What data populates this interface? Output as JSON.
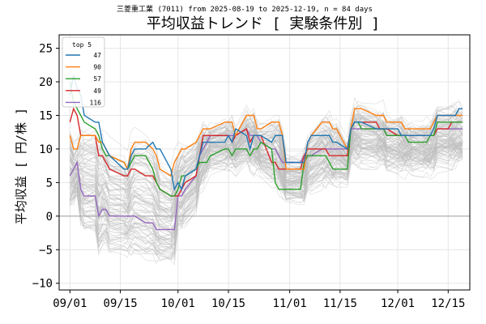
{
  "chart_data": {
    "type": "line",
    "subtitle": "三菱重工業 (7011) from 2025-08-19 to 2025-12-19, n = 84 days",
    "title": "平均収益トレンド [ 実験条件別 ]",
    "ylabel": "平均収益 [ 円/株 ]",
    "xlabel": "",
    "ylim": [
      -11,
      27
    ],
    "yticks": [
      -10,
      -5,
      0,
      5,
      10,
      15,
      20,
      25
    ],
    "xlim": [
      "2025-08-29",
      "2025-12-21"
    ],
    "xticks": [
      "09/01",
      "09/15",
      "10/01",
      "10/15",
      "11/01",
      "11/15",
      "12/01",
      "12/15"
    ],
    "xtick_dates": [
      "2025-09-01",
      "2025-09-15",
      "2025-10-01",
      "2025-10-15",
      "2025-11-01",
      "2025-11-15",
      "2025-12-01",
      "2025-12-15"
    ],
    "grid": true,
    "legend": {
      "title": "top 5",
      "placement": "top-left"
    },
    "background_series_count": 120,
    "dates": [
      "2025-09-01",
      "2025-09-02",
      "2025-09-03",
      "2025-09-04",
      "2025-09-05",
      "2025-09-08",
      "2025-09-09",
      "2025-09-10",
      "2025-09-11",
      "2025-09-12",
      "2025-09-16",
      "2025-09-17",
      "2025-09-18",
      "2025-09-19",
      "2025-09-22",
      "2025-09-24",
      "2025-09-25",
      "2025-09-26",
      "2025-09-29",
      "2025-09-30",
      "2025-10-01",
      "2025-10-02",
      "2025-10-03",
      "2025-10-06",
      "2025-10-07",
      "2025-10-08",
      "2025-10-09",
      "2025-10-10",
      "2025-10-14",
      "2025-10-15",
      "2025-10-16",
      "2025-10-17",
      "2025-10-20",
      "2025-10-21",
      "2025-10-22",
      "2025-10-23",
      "2025-10-24",
      "2025-10-27",
      "2025-10-28",
      "2025-10-29",
      "2025-10-30",
      "2025-10-31",
      "2025-11-04",
      "2025-11-05",
      "2025-11-06",
      "2025-11-07",
      "2025-11-10",
      "2025-11-11",
      "2025-11-12",
      "2025-11-13",
      "2025-11-14",
      "2025-11-17",
      "2025-11-18",
      "2025-11-19",
      "2025-11-20",
      "2025-11-21",
      "2025-11-25",
      "2025-11-26",
      "2025-11-27",
      "2025-11-28",
      "2025-12-01",
      "2025-12-02",
      "2025-12-03",
      "2025-12-04",
      "2025-12-05",
      "2025-12-08",
      "2025-12-09",
      "2025-12-10",
      "2025-12-11",
      "2025-12-12",
      "2025-12-15",
      "2025-12-16",
      "2025-12-17",
      "2025-12-18",
      "2025-12-19"
    ],
    "series": [
      {
        "name": "47",
        "color": "#1f77b4",
        "values": [
          18,
          21,
          19,
          18,
          15,
          14,
          14,
          11,
          10,
          9,
          7,
          7,
          9,
          10,
          10,
          11,
          10,
          10,
          7,
          4,
          5,
          4,
          6,
          7,
          9,
          11,
          11,
          11,
          11,
          12,
          11,
          13,
          12,
          10,
          12,
          12,
          12,
          11,
          12,
          12,
          12,
          8,
          8,
          8,
          11,
          12,
          12,
          12,
          12,
          11,
          11,
          10,
          13,
          14,
          14,
          14,
          13,
          13,
          13,
          13,
          13,
          12,
          12,
          12,
          12,
          12,
          12,
          12,
          13,
          15,
          15,
          15,
          15,
          16,
          16
        ]
      },
      {
        "name": "90",
        "color": "#ff7f0e",
        "values": [
          12,
          10,
          10,
          12,
          12,
          12,
          11,
          11,
          10,
          9,
          8,
          7,
          10,
          11,
          11,
          10,
          9,
          7,
          6,
          8,
          9,
          10,
          10,
          11,
          12,
          13,
          13,
          13,
          14,
          14,
          14,
          12,
          15,
          15,
          15,
          13,
          13,
          14,
          14,
          14,
          12,
          7,
          7,
          7,
          11,
          12,
          14,
          14,
          14,
          13,
          13,
          10,
          13,
          16,
          16,
          16,
          15,
          15,
          15,
          14,
          14,
          14,
          13,
          13,
          13,
          13,
          13,
          13,
          14,
          15,
          15,
          15,
          15,
          15,
          15
        ]
      },
      {
        "name": "57",
        "color": "#2ca02c",
        "values": [
          20,
          17,
          16,
          15,
          14,
          13,
          12,
          10,
          9,
          9,
          8,
          7,
          8,
          9,
          9,
          7,
          5,
          4,
          3,
          3,
          4,
          6,
          6,
          7,
          8,
          8,
          8,
          9,
          10,
          10,
          9,
          10,
          10,
          9,
          10,
          10,
          11,
          10,
          5,
          4,
          4,
          4,
          4,
          8,
          9,
          9,
          9,
          9,
          8,
          7,
          7,
          7,
          13,
          14,
          14,
          13,
          13,
          13,
          13,
          12,
          12,
          12,
          12,
          11,
          11,
          11,
          11,
          12,
          12,
          14,
          14,
          14,
          14,
          14,
          14
        ]
      },
      {
        "name": "49",
        "color": "#d62728",
        "values": [
          14,
          16,
          15,
          12,
          12,
          12,
          9,
          9,
          8,
          7,
          6,
          6,
          7,
          7,
          6,
          6,
          5,
          4,
          3,
          3,
          3,
          4,
          5,
          6,
          9,
          12,
          12,
          12,
          12,
          12,
          11,
          12,
          13,
          11,
          12,
          12,
          12,
          8,
          8,
          7,
          7,
          7,
          7,
          9,
          10,
          10,
          10,
          10,
          9,
          9,
          9,
          9,
          13,
          14,
          14,
          14,
          14,
          13,
          13,
          13,
          12,
          12,
          12,
          12,
          12,
          12,
          12,
          12,
          12,
          13,
          13,
          14,
          14,
          14,
          14
        ]
      },
      {
        "name": "116",
        "color": "#9467bd",
        "values": [
          6,
          7,
          8,
          4,
          3,
          3,
          0,
          1,
          1,
          0,
          0,
          0,
          0,
          0,
          -1,
          -1,
          -2,
          -2,
          -2,
          -2,
          3,
          3,
          4,
          6,
          9,
          10,
          11,
          12,
          12,
          12,
          12,
          12,
          13,
          12,
          12,
          12,
          11,
          10,
          10,
          9,
          8,
          8,
          8,
          9,
          9,
          9,
          10,
          10,
          10,
          10,
          10,
          10,
          13,
          13,
          13,
          13,
          13,
          13,
          13,
          12,
          12,
          12,
          12,
          12,
          12,
          12,
          12,
          12,
          12,
          13,
          13,
          13,
          13,
          13,
          13
        ]
      }
    ]
  }
}
